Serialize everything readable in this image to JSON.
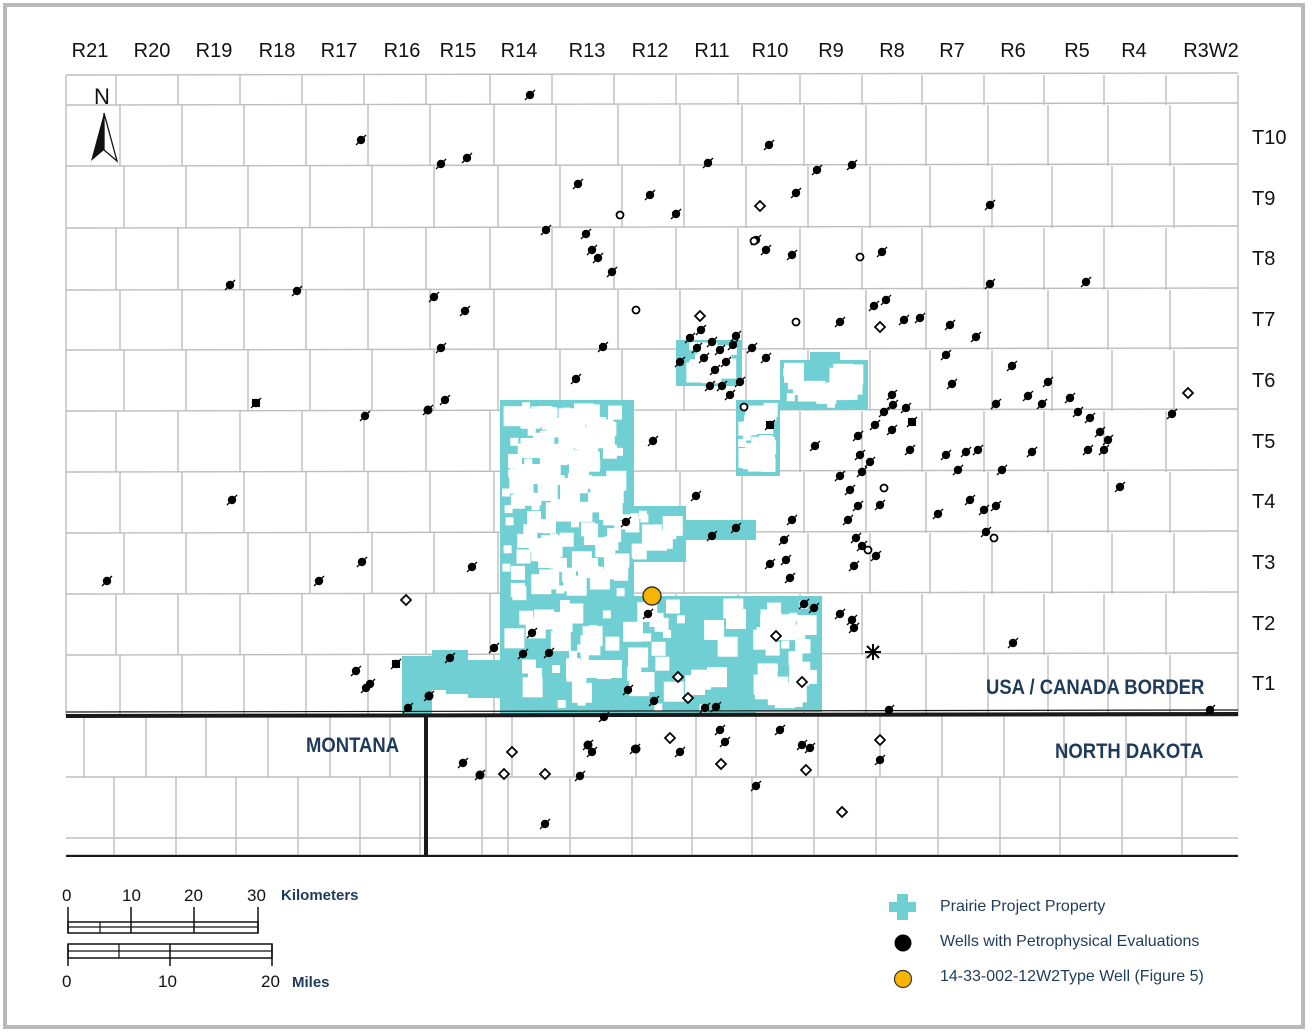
{
  "ranges": [
    "R21",
    "R20",
    "R19",
    "R18",
    "R17",
    "R16",
    "R15",
    "R14",
    "R13",
    "R12",
    "R11",
    "R10",
    "R9",
    "R8",
    "R7",
    "R6",
    "R5",
    "R4",
    "R3W2"
  ],
  "townships": [
    "T10",
    "T9",
    "T8",
    "T7",
    "T6",
    "T5",
    "T4",
    "T3",
    "T2",
    "T1"
  ],
  "regions": {
    "border": "USA / CANADA BORDER",
    "montana": "MONTANA",
    "north_dakota": "NORTH DAKOTA"
  },
  "north_arrow": {
    "label": "N"
  },
  "scale_bar": {
    "km_ticks": [
      "0",
      "10",
      "20",
      "30"
    ],
    "km_unit": "Kilometers",
    "mile_ticks": [
      "0",
      "10",
      "20"
    ],
    "mile_unit": "Miles"
  },
  "legend": [
    {
      "label": "Prairie Project Property",
      "symbol": "cross",
      "color": "#6fcfd2"
    },
    {
      "label": "Wells with Petrophysical Evaluations",
      "symbol": "dot",
      "color": "#000000"
    },
    {
      "label": "14-33-002-12W2Type Well (Figure 5)",
      "symbol": "dot",
      "color": "#f7b500"
    }
  ],
  "colors": {
    "property": "#6fcfd2",
    "grid": "#bdbdbd",
    "border": "#1a1a1a",
    "type_well": "#f7b500",
    "label_blue": "#1f3b5a"
  }
}
